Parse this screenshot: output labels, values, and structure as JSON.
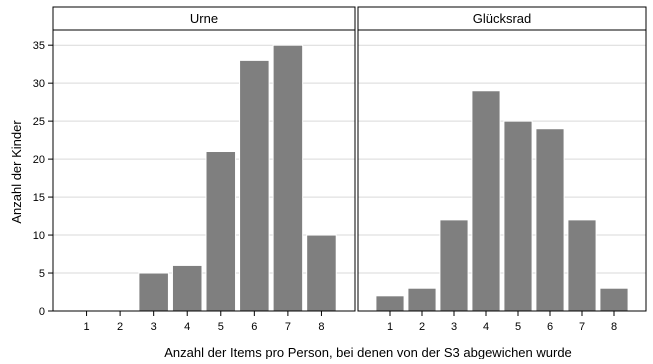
{
  "chart_data": {
    "type": "bar",
    "xlabel": "Anzahl der Items pro Person, bei denen von der S3 abgewichen wurde",
    "ylabel": "Anzahl der Kinder",
    "categories": [
      "1",
      "2",
      "3",
      "4",
      "5",
      "6",
      "7",
      "8"
    ],
    "yticks": [
      0,
      5,
      10,
      15,
      20,
      25,
      30,
      35
    ],
    "ylim": [
      0,
      37
    ],
    "grid": true,
    "bar_color": "#7f7f7f",
    "grid_color": "#d9d9d9",
    "panels": [
      {
        "title": "Urne",
        "values": [
          0,
          0,
          5,
          6,
          21,
          33,
          35,
          10
        ]
      },
      {
        "title": "Glücksrad",
        "values": [
          2,
          3,
          12,
          29,
          25,
          24,
          12,
          3
        ]
      }
    ]
  }
}
